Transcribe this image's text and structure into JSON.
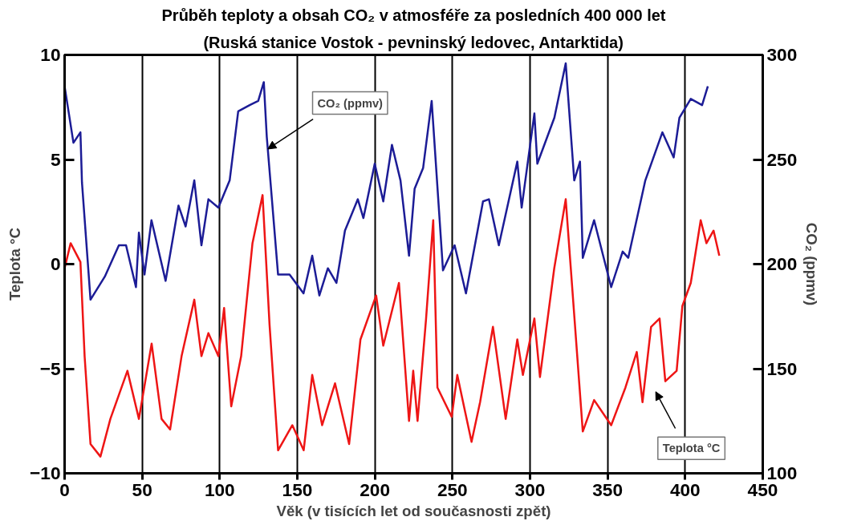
{
  "chart_data": {
    "type": "line",
    "title": "Průběh teploty a obsah CO₂ v atmosféře za posledních 400 000 let",
    "subtitle": "(Ruská stanice Vostok - pevninský ledovec, Antarktida)",
    "xlabel": "Věk (v tisících let od současnosti zpět)",
    "ylabel": "Teplota °C",
    "y2label": "CO₂ (ppmv)",
    "xlim": [
      0,
      450
    ],
    "xticks": [
      0,
      50,
      100,
      150,
      200,
      250,
      300,
      350,
      400,
      450
    ],
    "ylim": [
      -10,
      10
    ],
    "yticks": [
      -10,
      -5,
      0,
      5,
      10
    ],
    "y2lim": [
      100,
      300
    ],
    "y2ticks": [
      100,
      150,
      200,
      250,
      300
    ],
    "grid": "x",
    "line_style": "solid",
    "marker": "none",
    "annotations": [
      {
        "text": "CO₂ (ppmv)",
        "x": 131,
        "y": 5.5
      },
      "Teplota °C"
    ],
    "series": [
      {
        "color": "#1c1c96",
        "axis": "y2",
        "x": [
          0,
          5.7,
          10.2,
          11.2,
          16.7,
          25.9,
          35,
          39.6,
          46,
          47.9,
          51.5,
          56,
          65.1,
          73.4,
          78,
          83.6,
          88.2,
          92.7,
          99.1,
          106.4,
          111.9,
          119.3,
          124.8,
          128.4,
          130.3,
          137.6,
          145,
          154,
          159.6,
          164.2,
          169.7,
          175.2,
          180.7,
          189,
          192.6,
          199.9,
          205.4,
          211,
          216.5,
          222,
          225.6,
          231.1,
          236.6,
          243.9,
          251.4,
          258.7,
          269.7,
          273.5,
          279.9,
          291.8,
          294.6,
          302.8,
          304.7,
          315.7,
          323,
          328.5,
          332.2,
          334,
          341.3,
          352.3,
          359.7,
          363.3,
          374.3,
          385.3,
          392.6,
          396.3,
          403.6,
          410.9,
          414.6
        ],
        "values": [
          285,
          258,
          263,
          239,
          183,
          194,
          209,
          209,
          189,
          215,
          195,
          221,
          192,
          228,
          218,
          240,
          209,
          231,
          227,
          240,
          273,
          276,
          278,
          287,
          261,
          195,
          195,
          186,
          204,
          185,
          198,
          191,
          216,
          231,
          222,
          248,
          230,
          257,
          240,
          204,
          236,
          246,
          278,
          197,
          209,
          186,
          230,
          231,
          209,
          249,
          227,
          272,
          248,
          270,
          296,
          240,
          249,
          203,
          221,
          189,
          206,
          203,
          240,
          263,
          251,
          270,
          279,
          276,
          285
        ]
      },
      {
        "color": "#ee1515",
        "x": [
          0,
          3.9,
          10.2,
          12.9,
          16.7,
          23.1,
          29.5,
          40.5,
          47.9,
          56.1,
          62.5,
          68,
          75.4,
          83.6,
          88.2,
          92.7,
          99.1,
          102.8,
          107.4,
          113.8,
          121.1,
          127.6,
          132.1,
          137.6,
          146.8,
          154.1,
          159.6,
          166,
          174.3,
          183.4,
          190.7,
          200.8,
          205.4,
          215.5,
          222,
          224.7,
          227.5,
          233,
          237.6,
          240.3,
          249.5,
          253.1,
          262.3,
          267.8,
          276.1,
          284.3,
          291.8,
          295.4,
          302.8,
          306.4,
          315.6,
          323,
          334,
          341.3,
          352.3,
          361.5,
          368.8,
          372.5,
          378,
          383.5,
          387.2,
          394.5,
          398.2,
          403.6,
          410,
          413.7,
          418.3,
          422
        ],
        "values": [
          -0.2,
          1.0,
          0.1,
          -4.4,
          -8.6,
          -9.2,
          -7.4,
          -5.1,
          -7.4,
          -3.8,
          -7.4,
          -7.9,
          -4.4,
          -1.7,
          -4.4,
          -3.3,
          -4.4,
          -2.1,
          -6.8,
          -4.4,
          1.0,
          3.3,
          -2.9,
          -8.9,
          -7.7,
          -8.9,
          -5.3,
          -7.7,
          -5.7,
          -8.6,
          -3.6,
          -1.5,
          -3.9,
          -0.9,
          -7.5,
          -5.1,
          -7.5,
          -2.6,
          2.1,
          -5.9,
          -7.3,
          -5.3,
          -8.5,
          -6.6,
          -3.0,
          -7.4,
          -3.6,
          -5.3,
          -2.6,
          -5.4,
          -0.2,
          3.1,
          -8.0,
          -6.5,
          -7.7,
          -5.9,
          -4.2,
          -6.6,
          -3.0,
          -2.6,
          -5.6,
          -5.1,
          -2.0,
          -0.9,
          2.1,
          1.0,
          1.6,
          0.4
        ]
      }
    ]
  }
}
